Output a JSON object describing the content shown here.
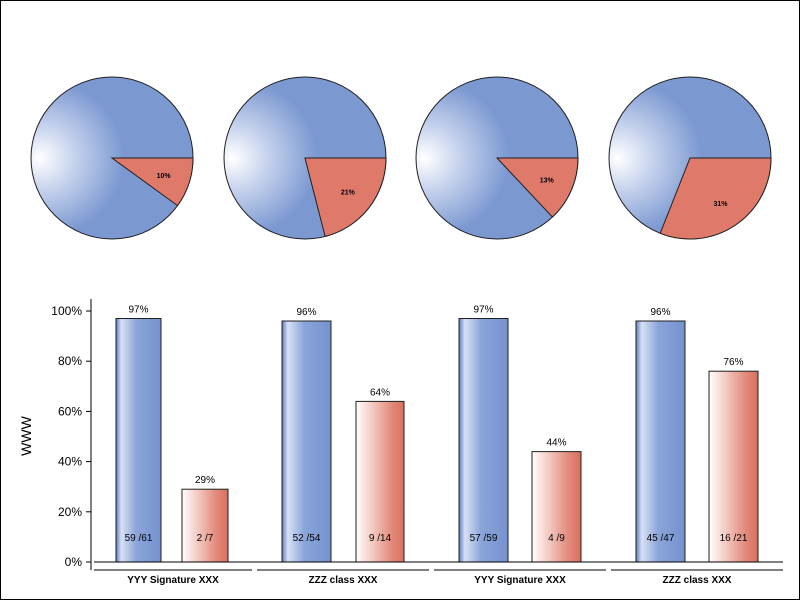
{
  "colors": {
    "blue": "#7b98d1",
    "red": "#df7a6b",
    "outline": "#202020"
  },
  "chart_data": [
    {
      "type": "pie",
      "slices": [
        {
          "name": "",
          "value": 90
        },
        {
          "name": "",
          "value": 10,
          "label": "10%"
        }
      ]
    },
    {
      "type": "pie",
      "slices": [
        {
          "name": "",
          "value": 79
        },
        {
          "name": "",
          "value": 21,
          "label": "21%"
        }
      ]
    },
    {
      "type": "pie",
      "slices": [
        {
          "name": "",
          "value": 87
        },
        {
          "name": "",
          "value": 13,
          "label": "13%"
        }
      ]
    },
    {
      "type": "pie",
      "slices": [
        {
          "name": "",
          "value": 69
        },
        {
          "name": "",
          "value": 31,
          "label": "31%"
        }
      ]
    },
    {
      "type": "bar",
      "ylabel": "WWW",
      "ylim": [
        0,
        100
      ],
      "yticks": [
        "0%",
        "20%",
        "40%",
        "60%",
        "80%",
        "100%"
      ],
      "groups": [
        {
          "category": "YYY Signature XXX",
          "bars": [
            {
              "value": 97,
              "top_label": "97%",
              "inner_label": "59 /61",
              "color": "blue"
            },
            {
              "value": 29,
              "top_label": "29%",
              "inner_label": "2 /7",
              "color": "red"
            }
          ]
        },
        {
          "category": "ZZZ class XXX",
          "bars": [
            {
              "value": 96,
              "top_label": "96%",
              "inner_label": "52 /54",
              "color": "blue"
            },
            {
              "value": 64,
              "top_label": "64%",
              "inner_label": "9 /14",
              "color": "red"
            }
          ]
        },
        {
          "category": "YYY Signature XXX",
          "bars": [
            {
              "value": 97,
              "top_label": "97%",
              "inner_label": "57 /59",
              "color": "blue"
            },
            {
              "value": 44,
              "top_label": "44%",
              "inner_label": "4 /9",
              "color": "red"
            }
          ]
        },
        {
          "category": "ZZZ class XXX",
          "bars": [
            {
              "value": 96,
              "top_label": "96%",
              "inner_label": "45 /47",
              "color": "blue"
            },
            {
              "value": 76,
              "top_label": "76%",
              "inner_label": "16 /21",
              "color": "red"
            }
          ]
        }
      ]
    }
  ]
}
